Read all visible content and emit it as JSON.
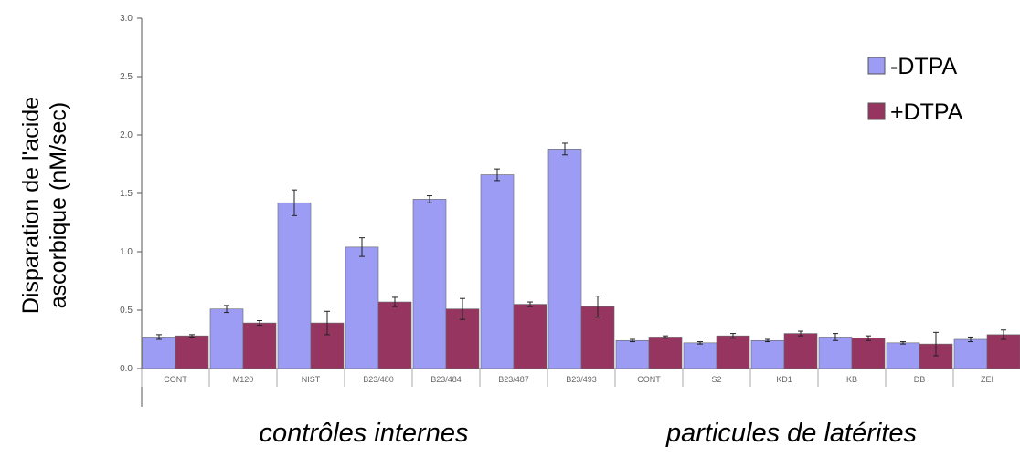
{
  "chart_data": {
    "type": "bar",
    "categories": [
      "CONT",
      "M120",
      "NIST",
      "B23/480",
      "B23/484",
      "B23/487",
      "B23/493",
      "CONT",
      "S2",
      "KD1",
      "KB",
      "DB",
      "ZEI"
    ],
    "series": [
      {
        "name": "-DTPA",
        "color": "#9c9cf4",
        "values": [
          0.27,
          0.51,
          1.42,
          1.04,
          1.45,
          1.66,
          1.88,
          0.24,
          0.22,
          0.24,
          0.27,
          0.22,
          0.25
        ],
        "errors": [
          0.02,
          0.03,
          0.11,
          0.08,
          0.03,
          0.05,
          0.05,
          0.01,
          0.01,
          0.01,
          0.03,
          0.01,
          0.02
        ]
      },
      {
        "name": "+DTPA",
        "color": "#953560",
        "values": [
          0.28,
          0.39,
          0.39,
          0.57,
          0.51,
          0.55,
          0.53,
          0.27,
          0.28,
          0.3,
          0.26,
          0.21,
          0.29
        ],
        "errors": [
          0.01,
          0.02,
          0.1,
          0.04,
          0.09,
          0.02,
          0.09,
          0.01,
          0.02,
          0.02,
          0.02,
          0.1,
          0.04
        ]
      }
    ],
    "ylim": [
      0,
      3.0
    ],
    "yticks": [
      "0.0",
      "0.5",
      "1.0",
      "1.5",
      "2.0",
      "2.5",
      "3.0"
    ],
    "ylabel_line1": "Disparation de l'acide",
    "ylabel_line2": "ascorbique (nM/sec)",
    "group_labels": [
      "contrôles internes",
      "particules de latérites"
    ],
    "legend_position": "top-right",
    "grid": false
  }
}
